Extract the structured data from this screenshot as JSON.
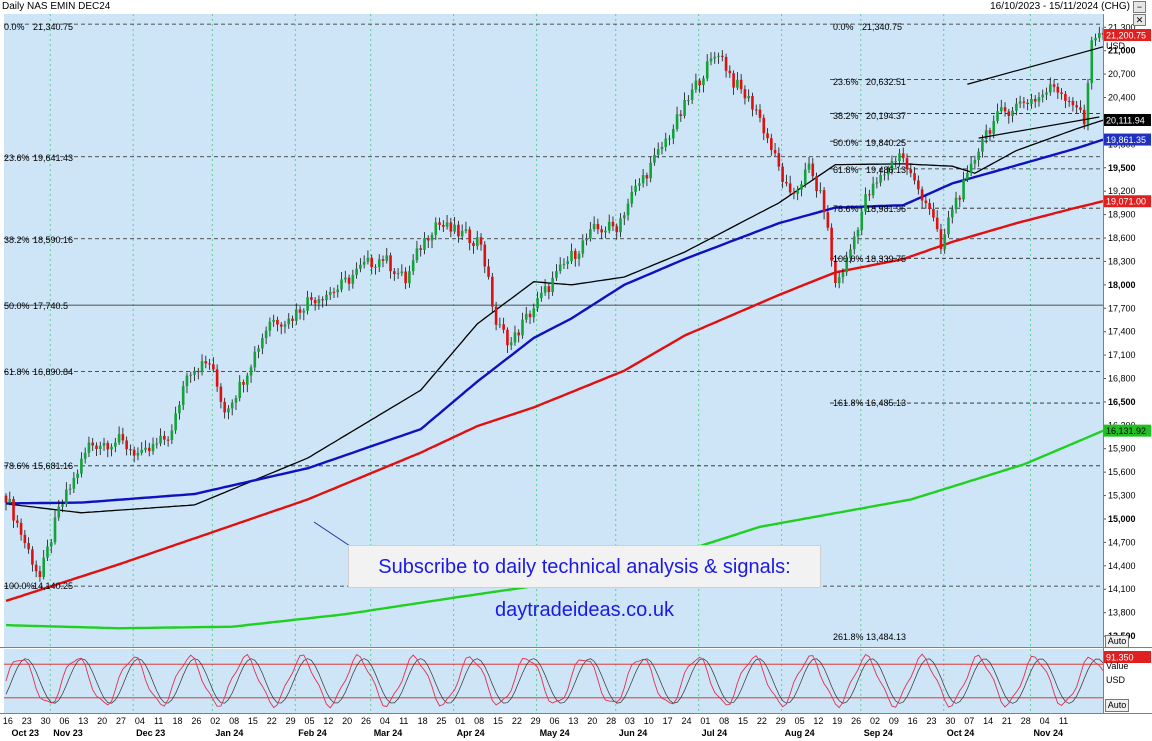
{
  "header": {
    "title": "Daily NAS EMIN DEC24",
    "range": "16/10/2023 - 15/11/2024 (CHG)"
  },
  "banner": {
    "text": "Subscribe to daily technical analysis & signals: daytradeideas.co.uk"
  },
  "buttons": {
    "auto_price": "Auto",
    "auto_osc": "Auto",
    "minus": "−",
    "close": "✕"
  },
  "chart_data": {
    "type": "candlestick",
    "title": "Daily NAS EMIN DEC24",
    "date_range": "16/10/2023 - 15/11/2024 (CHG)",
    "currency": "USD",
    "y_ticks": [
      21300,
      21000,
      20700,
      20400,
      20100,
      19800,
      19500,
      19200,
      18900,
      18600,
      18300,
      18000,
      17700,
      17400,
      17100,
      16800,
      16500,
      16200,
      15900,
      15600,
      15300,
      15000,
      14700,
      14400,
      14100,
      13800,
      13500
    ],
    "ylim": [
      13360,
      21470
    ],
    "x_day_ticks": [
      "16",
      "23",
      "30",
      "06",
      "13",
      "20",
      "27",
      "04",
      "11",
      "18",
      "26",
      "02",
      "08",
      "15",
      "22",
      "29",
      "05",
      "12",
      "20",
      "26",
      "04",
      "11",
      "18",
      "25",
      "01",
      "08",
      "15",
      "22",
      "29",
      "06",
      "13",
      "20",
      "28",
      "03",
      "10",
      "17",
      "24",
      "01",
      "08",
      "15",
      "22",
      "29",
      "05",
      "12",
      "19",
      "26",
      "02",
      "09",
      "16",
      "23",
      "30",
      "07",
      "14",
      "21",
      "28",
      "04",
      "11"
    ],
    "x_month_ticks": [
      "Oct 23",
      "Nov 23",
      "Dec 23",
      "Jan 24",
      "Feb 24",
      "Mar 24",
      "Apr 24",
      "May 24",
      "Jun 24",
      "Jul 24",
      "Aug 24",
      "Sep 24",
      "Oct 24",
      "Nov 24"
    ],
    "month_starts": [
      "Nov 23",
      "Dec 23",
      "Jan 24",
      "Feb 24",
      "Mar 24",
      "Apr 24",
      "May 24",
      "Jun 24",
      "Jul 24",
      "Aug 24",
      "Sep 24",
      "Oct 24",
      "Nov 24"
    ],
    "fib_left": [
      {
        "pct": "0.0%",
        "value": 21340.75,
        "price": "21,340.75"
      },
      {
        "pct": "23.6%",
        "value": 19641.43,
        "price": "19,641.43"
      },
      {
        "pct": "38.2%",
        "value": 18590.16,
        "price": "18,590.16"
      },
      {
        "pct": "50.0%",
        "value": 17740.5,
        "price": "17,740.5"
      },
      {
        "pct": "61.8%",
        "value": 16890.84,
        "price": "16,890.84"
      },
      {
        "pct": "78.6%",
        "value": 15681.16,
        "price": "15,681.16"
      },
      {
        "pct": "100.0%",
        "value": 14140.25,
        "price": "14,140.25"
      }
    ],
    "fib_right": [
      {
        "pct": "0.0%",
        "value": 21340.75,
        "price": "21,340.75"
      },
      {
        "pct": "23.6%",
        "value": 20632.51,
        "price": "20,632.51"
      },
      {
        "pct": "38.2%",
        "value": 20194.37,
        "price": "20,194.37"
      },
      {
        "pct": "50.0%",
        "value": 19840.25,
        "price": "19,840.25"
      },
      {
        "pct": "61.8%",
        "value": 19486.13,
        "price": "19,486.13"
      },
      {
        "pct": "78.6%",
        "value": 18981.96,
        "price": "18,981.96"
      },
      {
        "pct": "100.0%",
        "value": 18339.75,
        "price": "18,339.75"
      },
      {
        "pct": "161.8%",
        "value": 16485.13,
        "price": "16,485.13"
      },
      {
        "pct": "261.8%",
        "value": 13484.13,
        "price": "13,484.13"
      }
    ],
    "price_tags": [
      {
        "value": 21200.75,
        "text": "21,200.75",
        "bg": "#e02020",
        "fg": "#ffffff"
      },
      {
        "value": 20111.94,
        "text": "20,111.94",
        "bg": "#000000",
        "fg": "#ffffff"
      },
      {
        "value": 19861.35,
        "text": "19,861.35",
        "bg": "#2030c0",
        "fg": "#ffffff"
      },
      {
        "value": 19071.0,
        "text": "19,071.00",
        "bg": "#e02020",
        "fg": "#ffffff"
      },
      {
        "value": 16131.92,
        "text": "16,131.92",
        "bg": "#20c020",
        "fg": "#000000"
      }
    ],
    "axis_unit_label": "USD",
    "moving_averages": [
      {
        "color": "#000000",
        "points": [
          [
            0,
            15195
          ],
          [
            20,
            15080
          ],
          [
            50,
            15180
          ],
          [
            80,
            15780
          ],
          [
            110,
            16650
          ],
          [
            125,
            17500
          ],
          [
            140,
            18040
          ],
          [
            150,
            18000
          ],
          [
            164,
            18100
          ],
          [
            180,
            18420
          ],
          [
            205,
            19050
          ],
          [
            220,
            19540
          ],
          [
            238,
            19550
          ],
          [
            251,
            19520
          ],
          [
            257,
            19430
          ],
          [
            268,
            19720
          ],
          [
            284,
            20000
          ],
          [
            291,
            20110
          ]
        ]
      },
      {
        "color": "#1010c0",
        "points": [
          [
            0,
            15200
          ],
          [
            20,
            15210
          ],
          [
            50,
            15320
          ],
          [
            80,
            15650
          ],
          [
            110,
            16150
          ],
          [
            125,
            16760
          ],
          [
            140,
            17320
          ],
          [
            150,
            17570
          ],
          [
            164,
            18000
          ],
          [
            180,
            18330
          ],
          [
            205,
            18790
          ],
          [
            220,
            18990
          ],
          [
            238,
            19020
          ],
          [
            251,
            19300
          ],
          [
            268,
            19530
          ],
          [
            284,
            19750
          ],
          [
            291,
            19860
          ]
        ]
      },
      {
        "color": "#e01010",
        "points": [
          [
            0,
            13950
          ],
          [
            30,
            14420
          ],
          [
            80,
            15250
          ],
          [
            110,
            15850
          ],
          [
            125,
            16190
          ],
          [
            140,
            16430
          ],
          [
            164,
            16900
          ],
          [
            180,
            17350
          ],
          [
            205,
            17870
          ],
          [
            220,
            18160
          ],
          [
            238,
            18330
          ],
          [
            251,
            18550
          ],
          [
            268,
            18790
          ],
          [
            284,
            18990
          ],
          [
            291,
            19071
          ]
        ]
      },
      {
        "color": "#20d020",
        "points": [
          [
            0,
            13640
          ],
          [
            30,
            13600
          ],
          [
            60,
            13620
          ],
          [
            90,
            13780
          ],
          [
            120,
            14000
          ],
          [
            160,
            14280
          ],
          [
            200,
            14900
          ],
          [
            240,
            15250
          ],
          [
            270,
            15700
          ],
          [
            291,
            16130
          ]
        ]
      }
    ],
    "channel": [
      [
        [
          255,
          20570
        ],
        [
          291,
          21050
        ]
      ],
      [
        [
          258,
          19880
        ],
        [
          290,
          20150
        ]
      ]
    ],
    "stochastic": {
      "overbought": 80,
      "oversold": 20,
      "last": "91.350",
      "label": "Value",
      "unit": "USD"
    }
  }
}
